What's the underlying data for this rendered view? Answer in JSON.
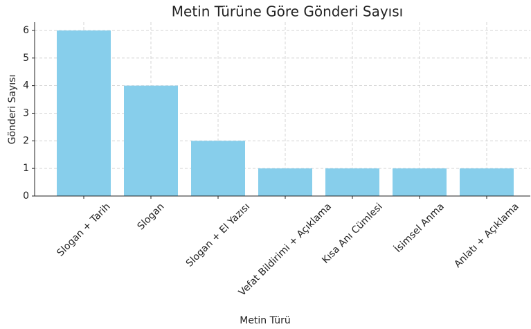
{
  "chart_data": {
    "type": "bar",
    "title": "Metin Türüne Göre Gönderi Sayısı",
    "x_label": "Metin Türü",
    "y_label": "Gönderi Sayısı",
    "categories": [
      "Slogan + Tarih",
      "Slogan",
      "Slogan + El Yazısı",
      "Vefat Bildirimi + Açıklama",
      "Kısa Anı Cümlesi",
      "İsimsel Anma",
      "Anlatı + Açıklama"
    ],
    "values": [
      6,
      4,
      2,
      1,
      1,
      1,
      1
    ],
    "color": "#87ceeb",
    "ylim": [
      0,
      6.3
    ],
    "yticks": [
      0,
      1,
      2,
      3,
      4,
      5,
      6
    ],
    "grid": true
  }
}
